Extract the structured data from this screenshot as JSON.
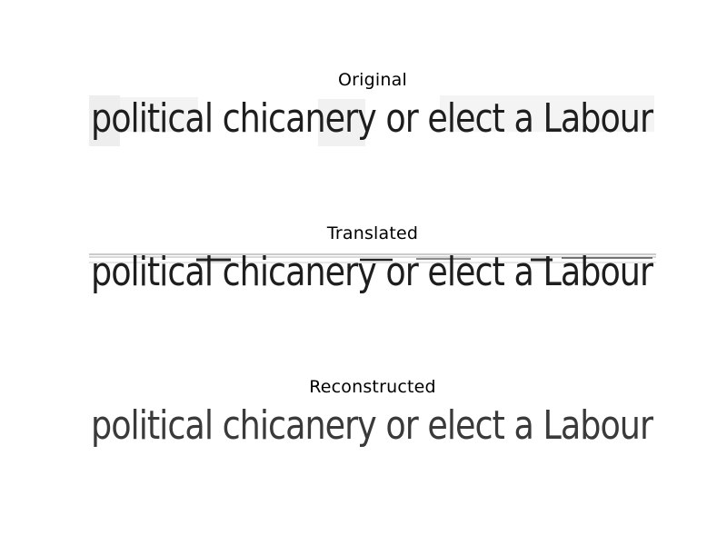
{
  "panels": [
    {
      "title": "Original",
      "text": "political chicanery or elect a Labour",
      "background": "#f2f2f2"
    },
    {
      "title": "Translated",
      "text": "political chicanery or elect a Labour",
      "background": "#ffffff"
    },
    {
      "title": "Reconstructed",
      "text": "political chicanery or elect a Labour",
      "background": "#ffffff"
    }
  ]
}
